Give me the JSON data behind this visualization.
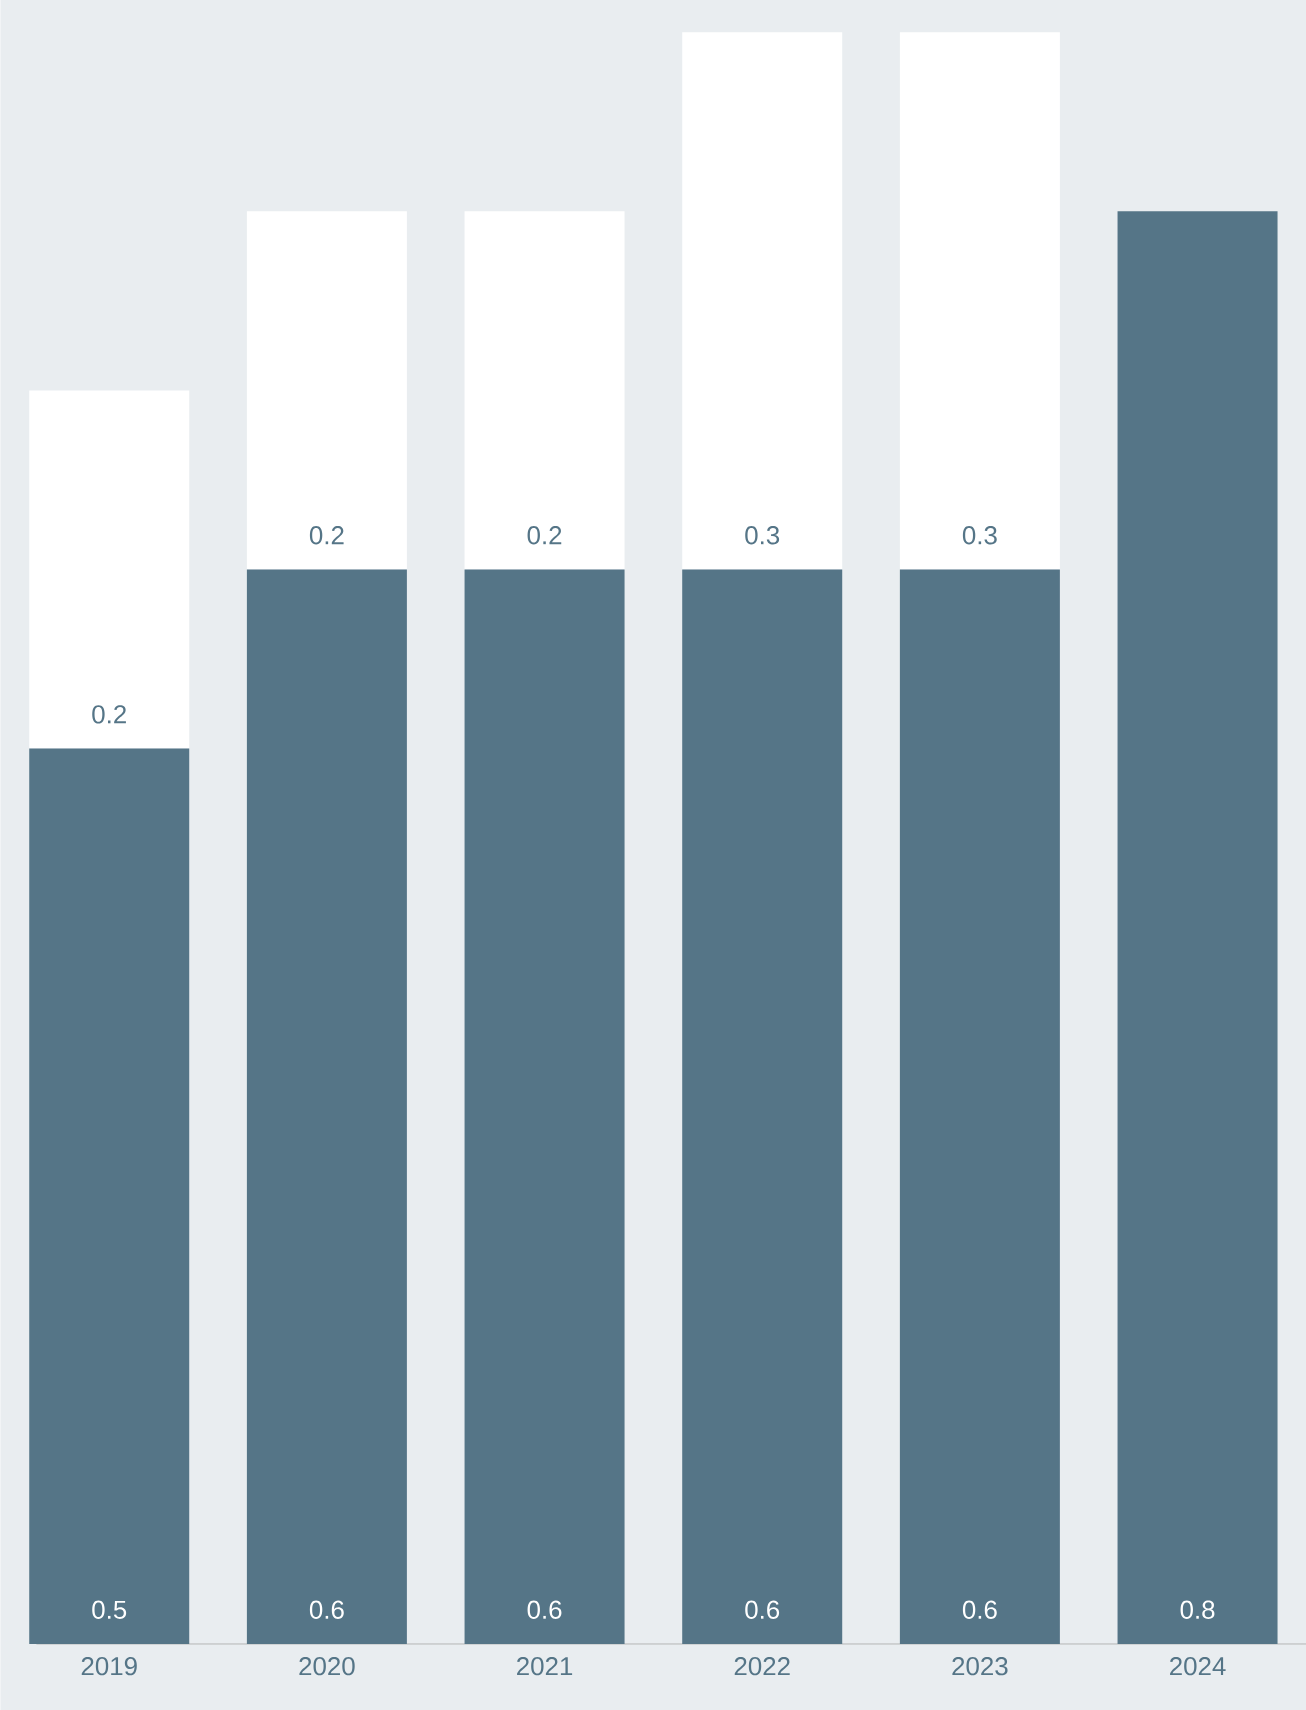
{
  "chart_data": {
    "type": "bar",
    "stacked": true,
    "categories": [
      "2019",
      "2020",
      "2021",
      "2022",
      "2023",
      "2024"
    ],
    "series": [
      {
        "color": "#557587",
        "values": [
          0.5,
          0.6,
          0.6,
          0.6,
          0.6,
          0.8
        ],
        "value_labels": [
          "0.5",
          "0.6",
          "0.6",
          "0.6",
          "0.6",
          "0.8"
        ]
      },
      {
        "color": "#ffffff",
        "values": [
          0.2,
          0.2,
          0.2,
          0.3,
          0.3,
          null
        ],
        "value_labels": [
          "0.2",
          "0.2",
          "0.2",
          "0.3",
          "0.3",
          null
        ]
      }
    ]
  }
}
